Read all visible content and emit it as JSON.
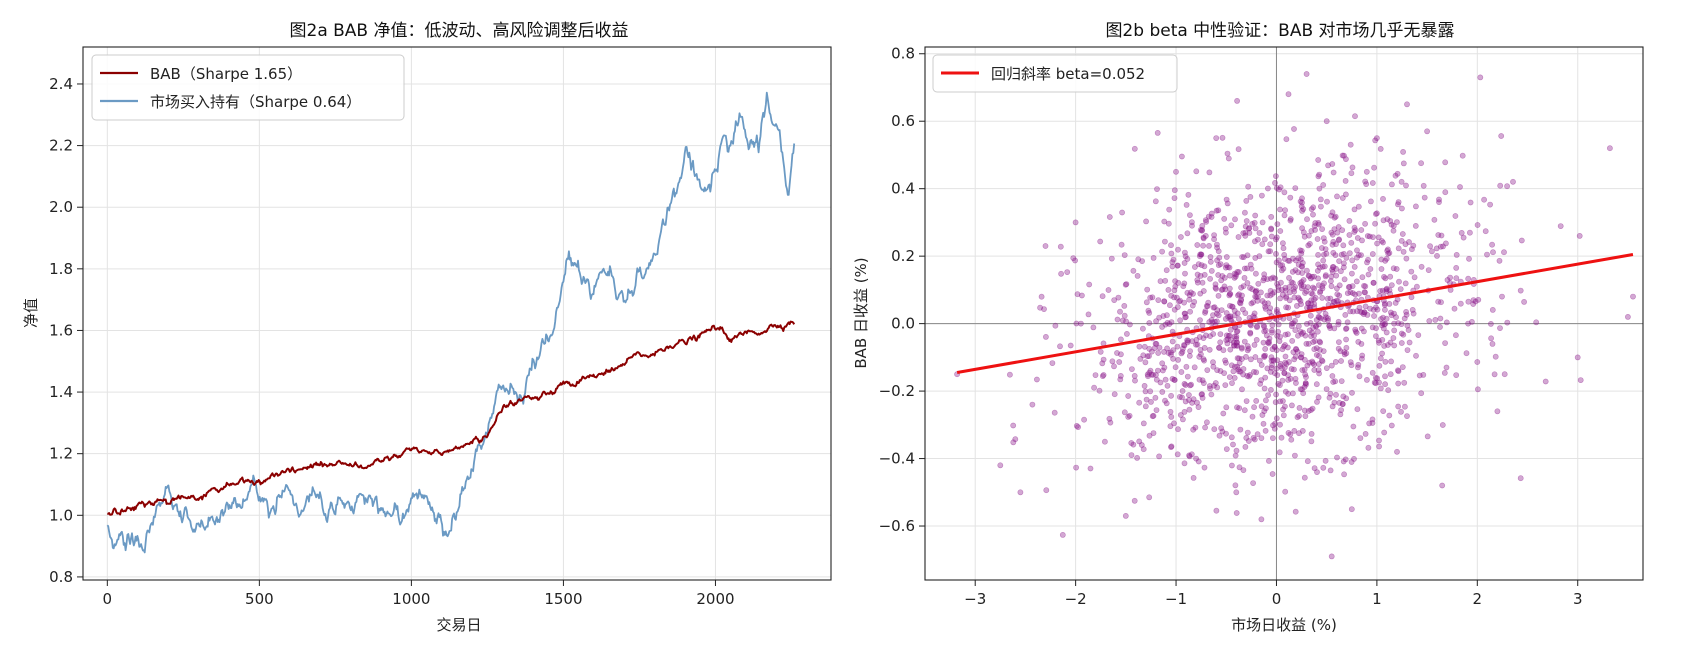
{
  "chart_data": [
    {
      "type": "line",
      "title": "图2a  BAB 净值：低波动、高风险调整后收益",
      "xlabel": "交易日",
      "ylabel": "净值",
      "xlim": [
        -80,
        2380
      ],
      "ylim": [
        0.79,
        2.52
      ],
      "xticks": [
        0,
        500,
        1000,
        1500,
        2000
      ],
      "yticks": [
        0.8,
        1.0,
        1.2,
        1.4,
        1.6,
        1.8,
        2.0,
        2.2,
        2.4
      ],
      "grid": true,
      "legend_position": "upper-left",
      "series": [
        {
          "name": "BAB（Sharpe 1.65）",
          "color": "#8b0000",
          "x": [
            0,
            50,
            100,
            150,
            200,
            250,
            300,
            350,
            400,
            450,
            500,
            550,
            600,
            650,
            700,
            750,
            800,
            850,
            900,
            950,
            1000,
            1050,
            1100,
            1150,
            1200,
            1250,
            1300,
            1350,
            1400,
            1450,
            1500,
            1550,
            1600,
            1650,
            1700,
            1750,
            1800,
            1850,
            1900,
            1950,
            2000,
            2030,
            2060,
            2100,
            2150,
            2200,
            2260
          ],
          "y": [
            1.0,
            1.02,
            1.03,
            1.05,
            1.05,
            1.06,
            1.06,
            1.08,
            1.1,
            1.11,
            1.11,
            1.12,
            1.14,
            1.15,
            1.17,
            1.17,
            1.17,
            1.16,
            1.17,
            1.18,
            1.22,
            1.21,
            1.21,
            1.22,
            1.23,
            1.27,
            1.35,
            1.37,
            1.38,
            1.4,
            1.42,
            1.43,
            1.45,
            1.46,
            1.49,
            1.52,
            1.52,
            1.56,
            1.56,
            1.58,
            1.61,
            1.59,
            1.57,
            1.59,
            1.6,
            1.62,
            1.63
          ]
        },
        {
          "name": "市场买入持有（Sharpe 0.64）",
          "color": "#6b9ac4",
          "x": [
            0,
            20,
            40,
            60,
            80,
            100,
            120,
            140,
            170,
            200,
            230,
            260,
            280,
            300,
            330,
            360,
            400,
            440,
            480,
            520,
            560,
            600,
            640,
            680,
            720,
            760,
            800,
            840,
            880,
            920,
            960,
            1000,
            1030,
            1060,
            1090,
            1110,
            1140,
            1170,
            1200,
            1230,
            1250,
            1280,
            1310,
            1340,
            1370,
            1400,
            1430,
            1460,
            1490,
            1510,
            1540,
            1570,
            1600,
            1630,
            1660,
            1690,
            1720,
            1750,
            1780,
            1810,
            1840,
            1860,
            1880,
            1900,
            1930,
            1960,
            1990,
            2020,
            2050,
            2080,
            2110,
            2140,
            2170,
            2180,
            2200,
            2220,
            2240,
            2260
          ],
          "y": [
            0.97,
            0.91,
            0.93,
            0.89,
            0.92,
            0.94,
            0.9,
            0.98,
            1.05,
            1.08,
            1.0,
            1.0,
            0.96,
            0.97,
            0.95,
            0.99,
            1.03,
            1.06,
            1.1,
            1.07,
            1.04,
            1.09,
            1.02,
            1.07,
            1.0,
            1.05,
            1.01,
            1.07,
            1.04,
            1.02,
            0.99,
            1.05,
            1.09,
            1.05,
            0.99,
            0.96,
            1.03,
            1.08,
            1.18,
            1.23,
            1.29,
            1.39,
            1.43,
            1.36,
            1.38,
            1.5,
            1.56,
            1.62,
            1.73,
            1.86,
            1.82,
            1.78,
            1.73,
            1.8,
            1.77,
            1.72,
            1.73,
            1.78,
            1.82,
            1.88,
            1.93,
            2.03,
            2.08,
            2.18,
            2.1,
            2.05,
            2.12,
            2.22,
            2.19,
            2.28,
            2.18,
            2.22,
            2.38,
            2.32,
            2.25,
            2.18,
            2.05,
            2.24
          ]
        }
      ]
    },
    {
      "type": "scatter",
      "title": "图2b  beta 中性验证：BAB 对市场几乎无暴露",
      "xlabel": "市场日收益 (%)",
      "ylabel": "BAB 日收益 (%)",
      "xlim": [
        -3.5,
        3.65
      ],
      "ylim": [
        -0.76,
        0.82
      ],
      "xticks": [
        -3,
        -2,
        -1,
        0,
        1,
        2,
        3
      ],
      "yticks": [
        -0.6,
        -0.4,
        -0.2,
        0.0,
        0.2,
        0.4,
        0.6,
        0.8
      ],
      "xtick_labels": [
        "−3",
        "−2",
        "−1",
        "0",
        "1",
        "2",
        "3"
      ],
      "ytick_labels": [
        "−0.6",
        "−0.4",
        "−0.2",
        "0.0",
        "0.2",
        "0.4",
        "0.6",
        "0.8"
      ],
      "grid": true,
      "legend_position": "upper-left",
      "point_color": "#8b1a8b",
      "n_points": 1500,
      "x_std": 0.95,
      "y_std": 0.2,
      "regression": {
        "name": "回归斜率 beta=0.052",
        "slope": 0.052,
        "x_range": [
          -3.18,
          3.55
        ],
        "y_range": [
          -0.145,
          0.205
        ],
        "color": "#ee1111"
      },
      "sample_points": [
        [
          0.3,
          0.74
        ],
        [
          2.03,
          0.73
        ],
        [
          0.12,
          0.68
        ],
        [
          3.32,
          0.52
        ],
        [
          3.02,
          0.26
        ],
        [
          3.55,
          0.08
        ],
        [
          3.0,
          -0.1
        ],
        [
          -2.75,
          -0.42
        ],
        [
          -2.55,
          -0.5
        ],
        [
          -3.18,
          -0.15
        ],
        [
          0.55,
          -0.69
        ],
        [
          -0.15,
          -0.58
        ],
        [
          1.65,
          -0.48
        ],
        [
          -1.5,
          -0.57
        ],
        [
          2.2,
          -0.26
        ],
        [
          -2.0,
          0.3
        ],
        [
          -2.3,
          0.23
        ],
        [
          1.0,
          0.55
        ],
        [
          -1.0,
          0.45
        ],
        [
          0.5,
          0.6
        ],
        [
          1.3,
          0.65
        ],
        [
          1.5,
          0.57
        ],
        [
          -0.6,
          0.55
        ],
        [
          -0.4,
          -0.5
        ],
        [
          0.75,
          -0.55
        ],
        [
          -0.8,
          -0.4
        ],
        [
          1.2,
          -0.38
        ],
        [
          0.9,
          0.45
        ]
      ]
    }
  ]
}
